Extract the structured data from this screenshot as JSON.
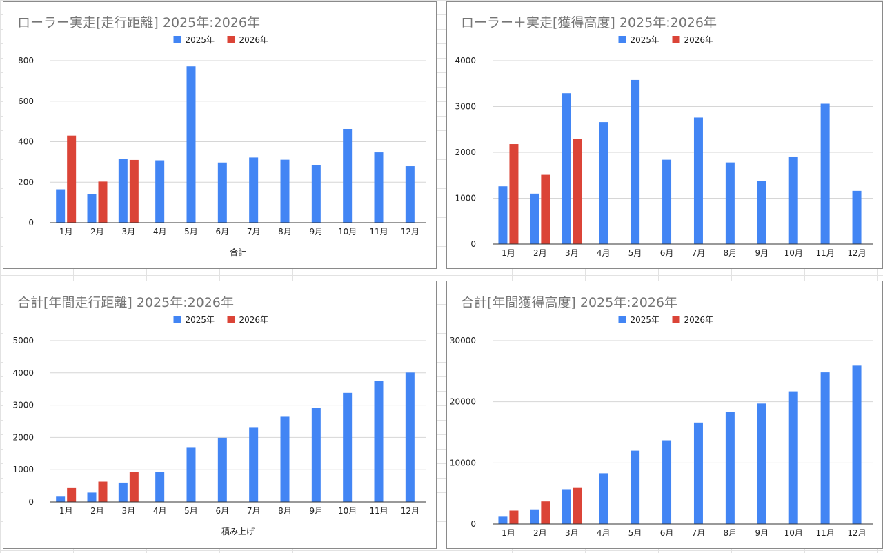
{
  "legend": {
    "s1": "2025年",
    "s2": "2026年"
  },
  "colors": {
    "s1": "#4285f4",
    "s2": "#db4437"
  },
  "chart_data": [
    {
      "type": "bar",
      "title": "ローラー実走[走行距離] 2025年:2026年",
      "xlabel": "合計",
      "ylim": [
        0,
        800
      ],
      "yticks": [
        "0",
        "200",
        "400",
        "600",
        "800"
      ],
      "categories": [
        "1月",
        "2月",
        "3月",
        "4月",
        "5月",
        "6月",
        "7月",
        "8月",
        "9月",
        "10月",
        "11月",
        "12月"
      ],
      "series": [
        {
          "name": "2025年",
          "values": [
            165,
            140,
            315,
            308,
            772,
            297,
            322,
            311,
            283,
            463,
            347,
            279
          ]
        },
        {
          "name": "2026年",
          "values": [
            430,
            203,
            310,
            null,
            null,
            null,
            null,
            null,
            null,
            null,
            null,
            null
          ]
        }
      ]
    },
    {
      "type": "bar",
      "title": "ローラー＋実走[獲得高度] 2025年:2026年",
      "xlabel": "",
      "ylim": [
        0,
        4000
      ],
      "yticks": [
        "0",
        "1000",
        "2000",
        "3000",
        "4000"
      ],
      "categories": [
        "1月",
        "2月",
        "3月",
        "4月",
        "5月",
        "6月",
        "7月",
        "8月",
        "9月",
        "10月",
        "11月",
        "12月"
      ],
      "series": [
        {
          "name": "2025年",
          "values": [
            1260,
            1100,
            3290,
            2660,
            3580,
            1840,
            2760,
            1780,
            1370,
            1910,
            3060,
            1160
          ]
        },
        {
          "name": "2026年",
          "values": [
            2180,
            1510,
            2300,
            null,
            null,
            null,
            null,
            null,
            null,
            null,
            null,
            null
          ]
        }
      ]
    },
    {
      "type": "bar",
      "title": "合計[年間走行距離] 2025年:2026年",
      "xlabel": "積み上げ",
      "ylim": [
        0,
        5000
      ],
      "yticks": [
        "0",
        "1000",
        "2000",
        "3000",
        "4000",
        "5000"
      ],
      "categories": [
        "1月",
        "2月",
        "3月",
        "4月",
        "5月",
        "6月",
        "7月",
        "8月",
        "9月",
        "10月",
        "11月",
        "12月"
      ],
      "series": [
        {
          "name": "2025年",
          "values": [
            165,
            290,
            600,
            920,
            1700,
            1990,
            2320,
            2640,
            2910,
            3380,
            3740,
            4010
          ]
        },
        {
          "name": "2026年",
          "values": [
            430,
            630,
            940,
            null,
            null,
            null,
            null,
            null,
            null,
            null,
            null,
            null
          ]
        }
      ]
    },
    {
      "type": "bar",
      "title": "合計[年間獲得高度] 2025年:2026年",
      "xlabel": "",
      "ylim": [
        0,
        30000
      ],
      "yticks": [
        "0",
        "10000",
        "20000",
        "30000"
      ],
      "categories": [
        "1月",
        "2月",
        "3月",
        "4月",
        "5月",
        "6月",
        "7月",
        "8月",
        "9月",
        "10月",
        "11月",
        "12月"
      ],
      "series": [
        {
          "name": "2025年",
          "values": [
            1200,
            2400,
            5700,
            8300,
            12000,
            13700,
            16600,
            18300,
            19700,
            21700,
            24800,
            25900
          ]
        },
        {
          "name": "2026年",
          "values": [
            2200,
            3700,
            5900,
            null,
            null,
            null,
            null,
            null,
            null,
            null,
            null,
            null
          ]
        }
      ]
    }
  ]
}
